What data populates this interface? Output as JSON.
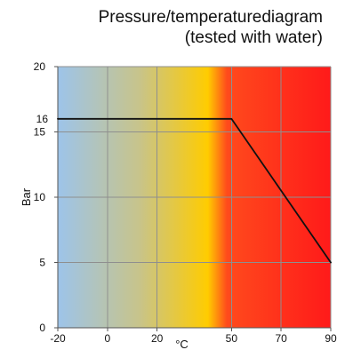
{
  "chart_data": {
    "type": "line",
    "title": "Pressure/temperaturediagram",
    "subtitle": "(tested with water)",
    "xlabel": "°C",
    "ylabel": "Bar",
    "xlim": [
      -20,
      90
    ],
    "ylim": [
      0,
      20
    ],
    "x_ticks": [
      "-20",
      "0",
      "20",
      "50",
      "70",
      "90"
    ],
    "y_ticks": [
      "0",
      "5",
      "10",
      "15",
      "20"
    ],
    "extra_y_label": "16",
    "grid": true,
    "series": [
      {
        "values": [
          {
            "x": -20,
            "y": 16
          },
          {
            "x": 50,
            "y": 16
          },
          {
            "x": 90,
            "y": 5
          }
        ]
      }
    ],
    "background_gradient": [
      "#9dc4ea",
      "#c8c48a",
      "#ffcc00",
      "#ff4a1c",
      "#ff1a1a"
    ],
    "line_color": "#111111",
    "grid_color": "#8f8f8f"
  }
}
